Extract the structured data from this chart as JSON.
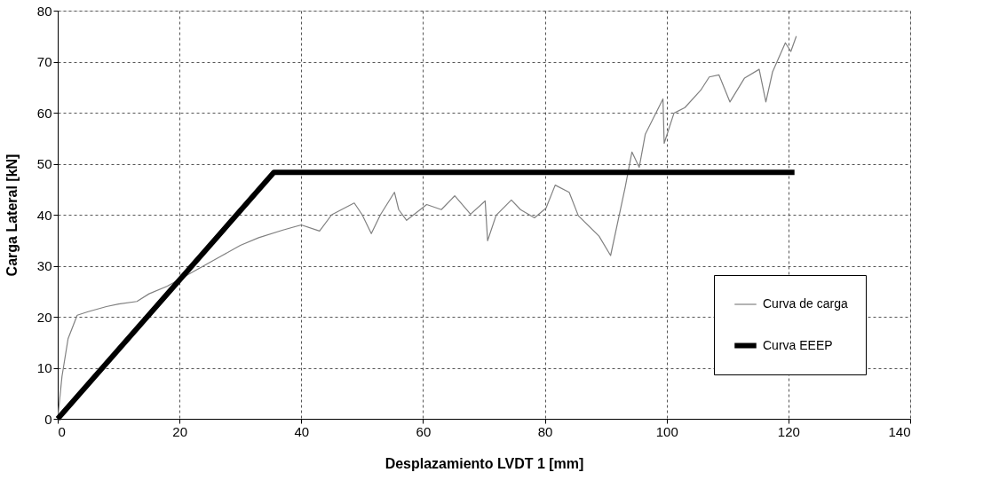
{
  "chart_data": {
    "type": "line",
    "xlabel": "Desplazamiento LVDT 1 [mm]",
    "ylabel": "Carga Lateral [kN]",
    "xlim": [
      0,
      140
    ],
    "xticks": [
      0,
      20,
      40,
      60,
      80,
      100,
      120,
      140
    ],
    "ylim": [
      0,
      80
    ],
    "yticks": [
      0,
      10,
      20,
      30,
      40,
      50,
      60,
      70,
      80
    ],
    "grid": true,
    "legend": "bottom right",
    "line_style": "solid",
    "marker": "none",
    "series": [
      {
        "name": "Curva de carga",
        "color": "#808080",
        "x": [
          0,
          0.7,
          1.7,
          3.2,
          5,
          8,
          10,
          13,
          15,
          18,
          21,
          24,
          27,
          30,
          33,
          37,
          40,
          43,
          45,
          48.7,
          50,
          51.5,
          53,
          55.3,
          56,
          57.3,
          60.6,
          63,
          65.2,
          67.8,
          70.2,
          70.6,
          72,
          74.5,
          76,
          78.3,
          80.2,
          81.7,
          84,
          85.5,
          88.9,
          90.8,
          93.2,
          94.3,
          95.5,
          96.5,
          99.4,
          99.6,
          101.2,
          103,
          105.6,
          107,
          108.6,
          110.4,
          112.8,
          115.2,
          116.3,
          117.4,
          119.5,
          120.4,
          121.3
        ],
        "values": [
          0,
          8.3,
          15.7,
          20.3,
          21,
          22,
          22.5,
          23,
          24.5,
          26,
          28,
          30,
          32,
          34,
          35.5,
          37,
          38,
          36.8,
          40,
          42.3,
          40,
          36.3,
          40,
          44.4,
          41,
          38.9,
          42,
          41,
          43.7,
          40.1,
          42.7,
          34.9,
          39.9,
          42.9,
          41,
          39.4,
          41.3,
          45.8,
          44.4,
          39.8,
          35.8,
          32,
          45.4,
          52.3,
          49.3,
          55.8,
          62.7,
          54,
          59.9,
          61,
          64.4,
          67,
          67.4,
          62.1,
          66.8,
          68.5,
          62.1,
          68,
          73.7,
          72,
          75
        ]
      },
      {
        "name": "Curva EEEP",
        "color": "#000000",
        "x": [
          0,
          35.5,
          121
        ],
        "values": [
          0,
          48.3,
          48.3
        ]
      }
    ]
  }
}
